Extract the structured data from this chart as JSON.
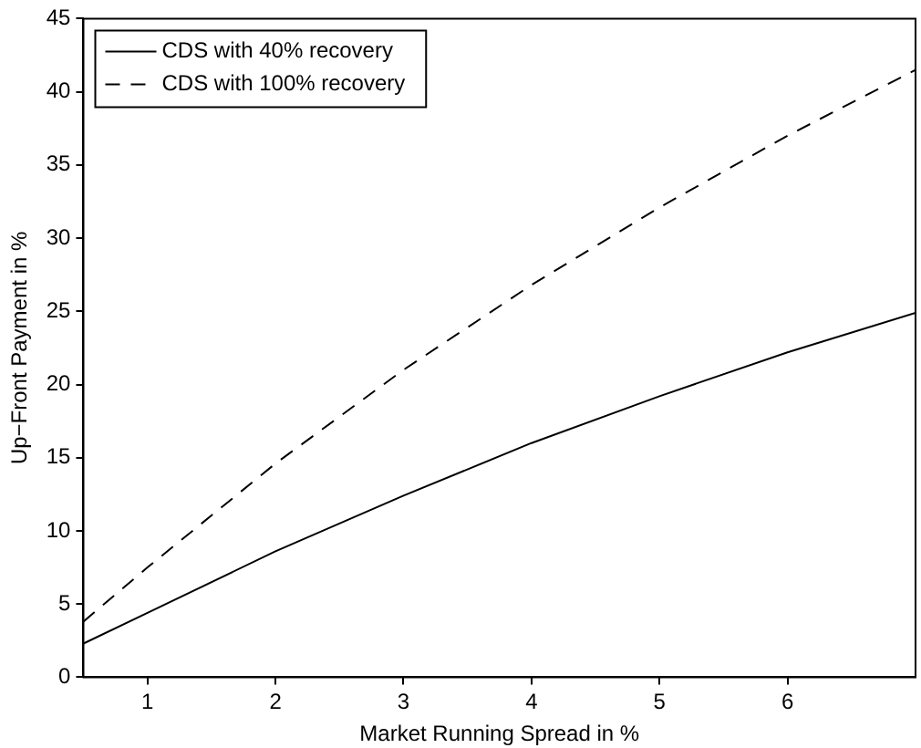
{
  "chart_data": {
    "type": "line",
    "xlabel": "Market Running Spread in %",
    "ylabel": "Up−Front Payment in %",
    "x": [
      0.5,
      1,
      2,
      3,
      4,
      5,
      6,
      7
    ],
    "series": [
      {
        "name": "CDS with 40% recovery",
        "color": "#000000",
        "line_style": "solid",
        "values": [
          2.3,
          4.4,
          8.6,
          12.4,
          16.0,
          19.2,
          22.2,
          24.9
        ]
      },
      {
        "name": "CDS with 100% recovery",
        "color": "#000000",
        "line_style": "dashed",
        "values": [
          3.8,
          7.5,
          14.6,
          21.0,
          26.8,
          32.1,
          37.0,
          41.5
        ]
      }
    ],
    "xlim": [
      0.5,
      7
    ],
    "xticks": [
      1,
      2,
      3,
      4,
      5,
      6
    ],
    "ylim": [
      0,
      45
    ],
    "yticks": [
      0,
      5,
      10,
      15,
      20,
      25,
      30,
      35,
      40,
      45
    ],
    "grid": false,
    "legend": "top left",
    "marker": "none"
  }
}
